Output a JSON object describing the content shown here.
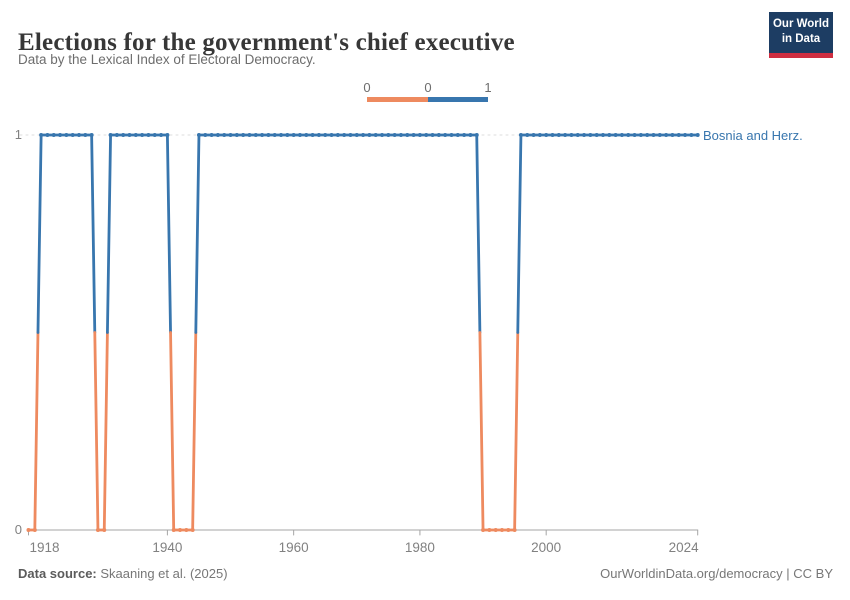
{
  "header": {
    "title": "Elections for the government's chief executive",
    "subtitle": "Data by the Lexical Index of Electoral Democracy.",
    "logo_line1": "Our World",
    "logo_line2": "in Data"
  },
  "legend": {
    "labels": [
      "0",
      "0",
      "1"
    ],
    "bins": [
      {
        "color": "#ee8a5f",
        "from_label": "0"
      },
      {
        "color": "#3876ae",
        "to_label": "1"
      }
    ]
  },
  "chart_data": {
    "type": "line",
    "title": "Elections for the government's chief executive",
    "entity": "Bosnia and Herz.",
    "xlabel": "",
    "ylabel": "",
    "xlim": [
      1918,
      2024
    ],
    "ylim": [
      0,
      1
    ],
    "x_ticks": [
      1918,
      1940,
      1960,
      1980,
      2000,
      2024
    ],
    "y_ticks": [
      0,
      1
    ],
    "grid": "dashed line at y=1 only",
    "legend_position": "top-center",
    "series_name": "Bosnia and Herz.",
    "segments": [
      {
        "from": 1918,
        "to": 1919,
        "value": 0
      },
      {
        "from": 1920,
        "to": 1928,
        "value": 1
      },
      {
        "from": 1929,
        "to": 1930,
        "value": 0
      },
      {
        "from": 1931,
        "to": 1940,
        "value": 1
      },
      {
        "from": 1941,
        "to": 1944,
        "value": 0
      },
      {
        "from": 1945,
        "to": 1989,
        "value": 1
      },
      {
        "from": 1990,
        "to": 1995,
        "value": 0
      },
      {
        "from": 1996,
        "to": 2024,
        "value": 1
      }
    ],
    "value_colors": {
      "0": "#ee8a5f",
      "1": "#3876ae"
    },
    "axis_color": "#a5a5a5",
    "tick_label_color": "#818181",
    "gridline_color": "#dddddd"
  },
  "footer": {
    "source_label": "Data source:",
    "source_text": " Skaaning et al. (2025)",
    "license_text": "OurWorldinData.org/democracy | CC BY"
  }
}
